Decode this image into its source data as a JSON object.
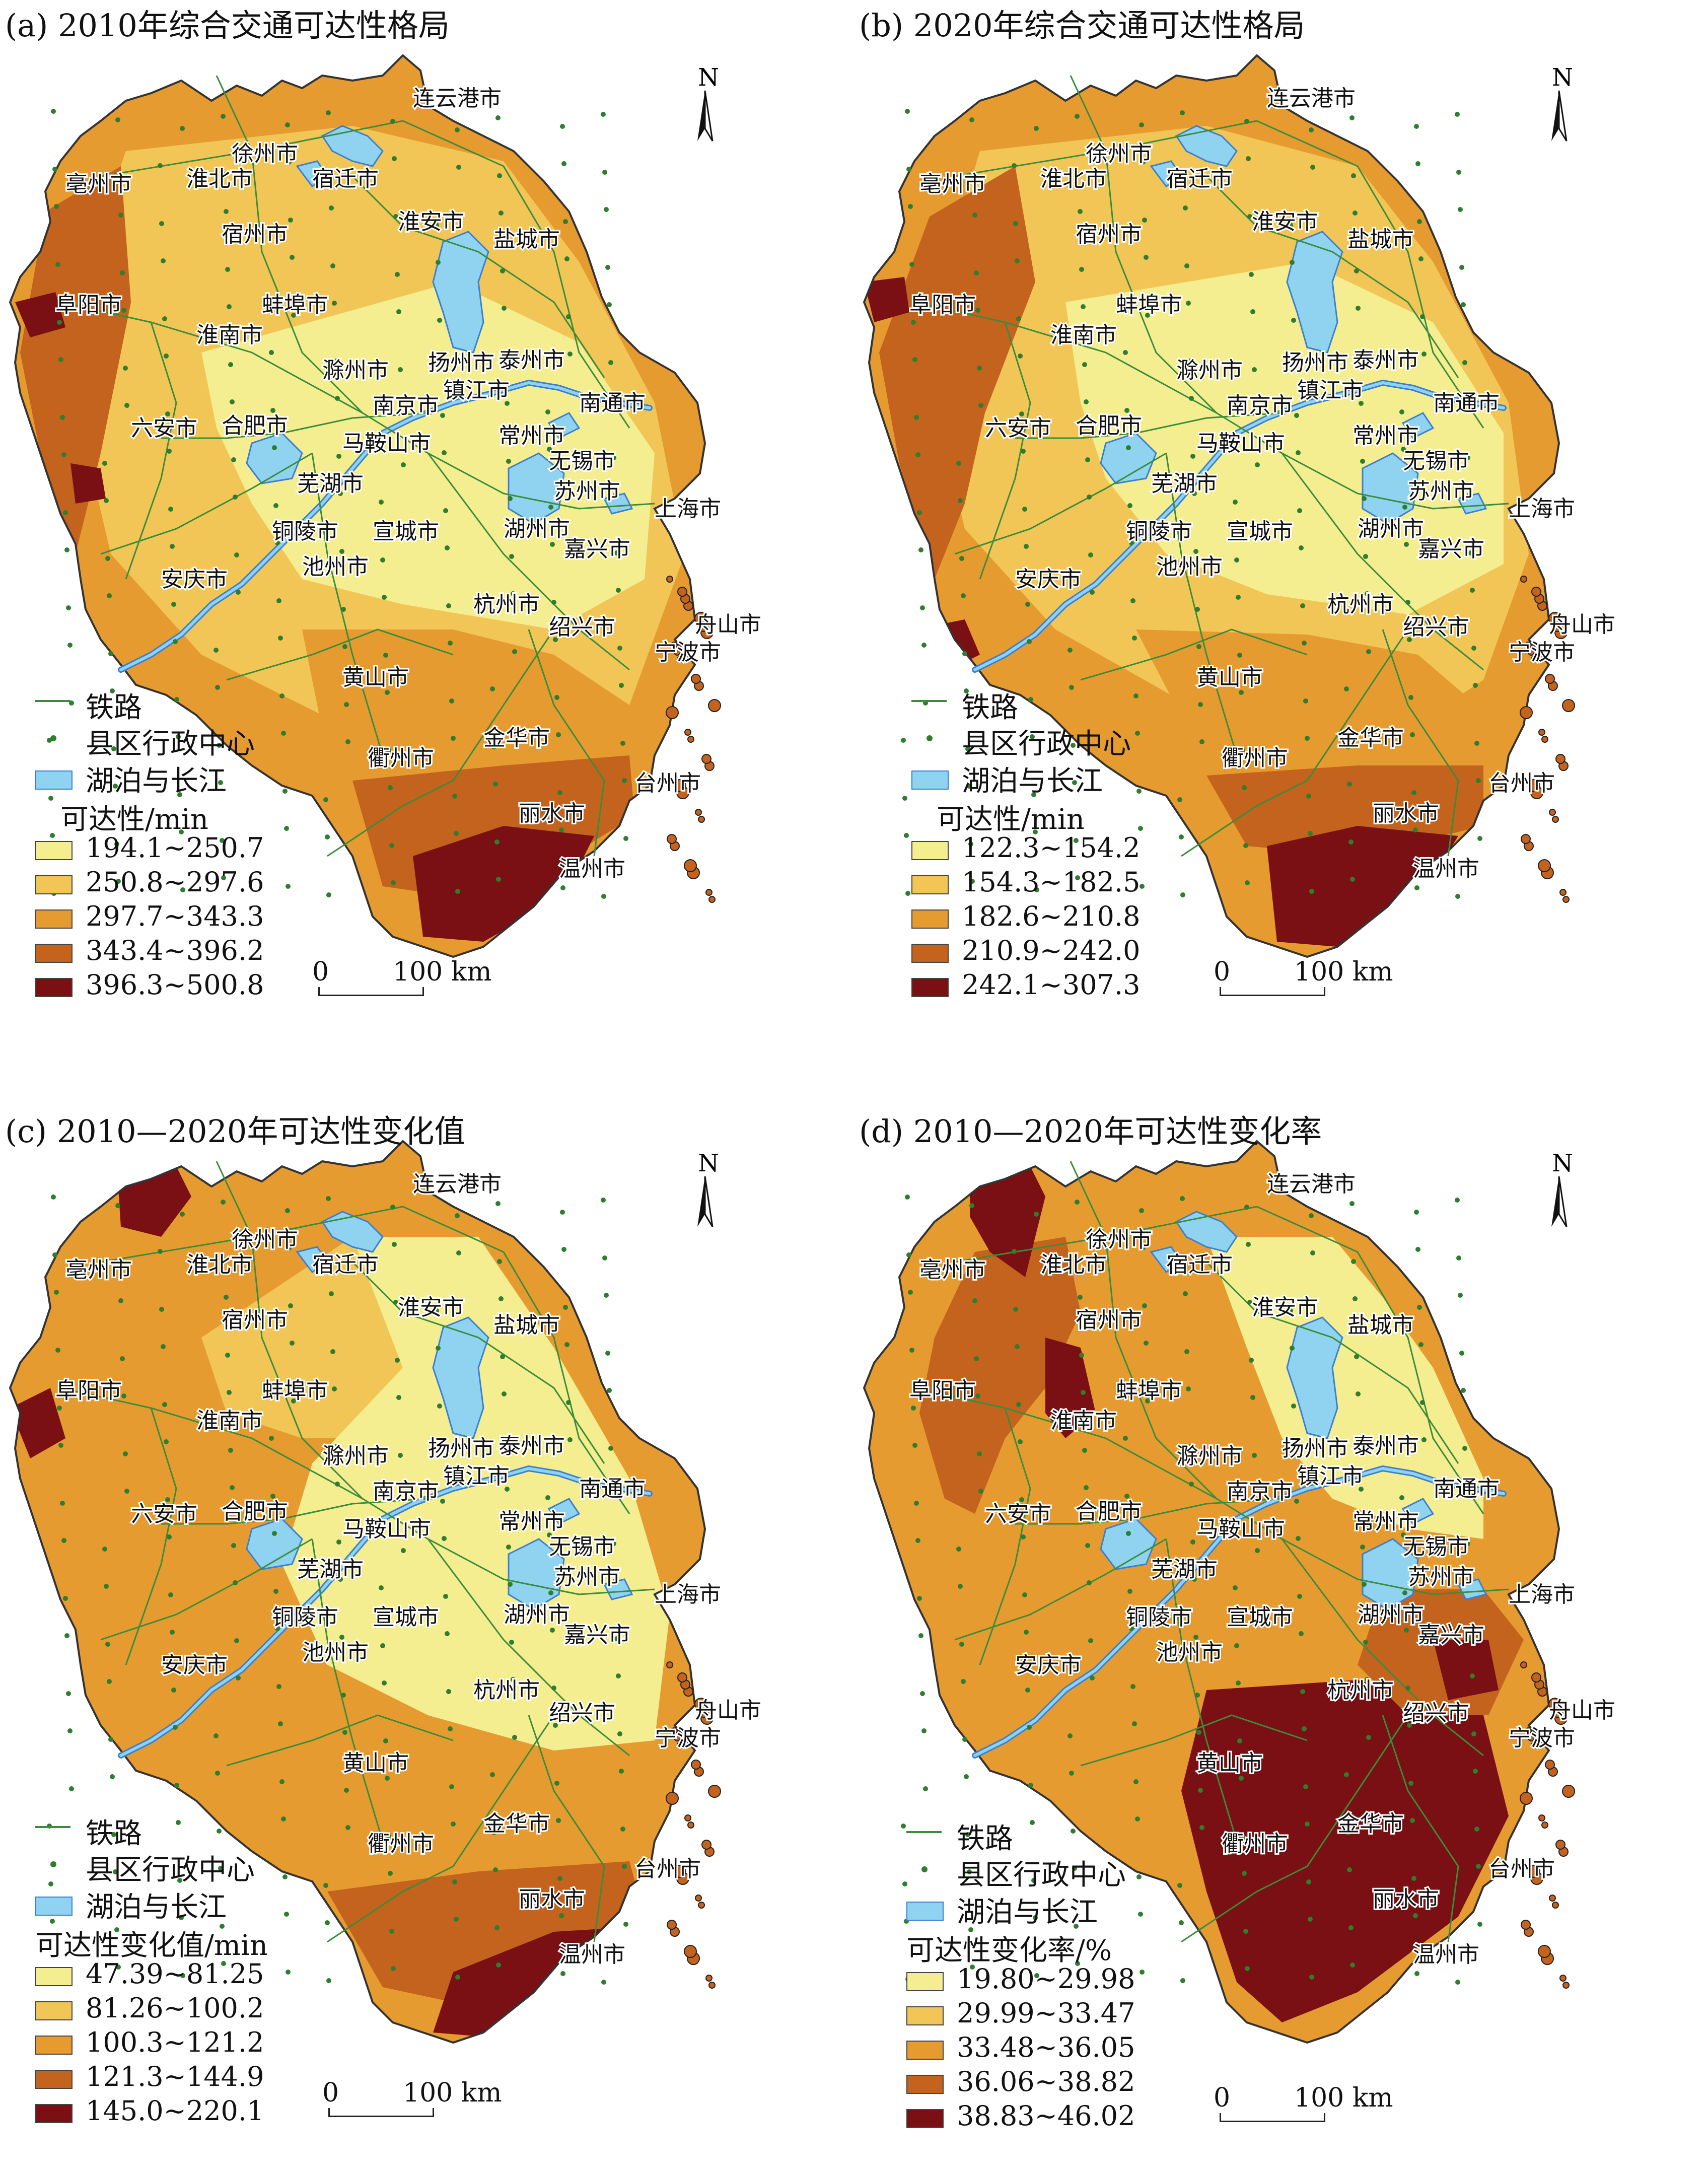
{
  "colors": {
    "class1": "#f4ee90",
    "class2": "#f1c657",
    "class3": "#e69b30",
    "class4": "#c3631e",
    "class5": "#7a0f14",
    "water": "#8fd3f0",
    "water_edge": "#3b7fd0",
    "rail": "#3b8c3b",
    "boundary": "#333333"
  },
  "legend_common": {
    "rail": "铁路",
    "county_center": "县区行政中心",
    "water": "湖泊与长江",
    "north": "N",
    "scale_zero": "0",
    "scale_text": "100 km"
  },
  "cities": [
    "连云港市",
    "徐州市",
    "亳州市",
    "淮北市",
    "宿迁市",
    "宿州市",
    "淮安市",
    "盐城市",
    "阜阳市",
    "蚌埠市",
    "淮南市",
    "滁州市",
    "扬州市",
    "泰州市",
    "镇江市",
    "南京市",
    "南通市",
    "六安市",
    "合肥市",
    "马鞍山市",
    "常州市",
    "无锡市",
    "芜湖市",
    "苏州市",
    "上海市",
    "铜陵市",
    "宣城市",
    "湖州市",
    "嘉兴市",
    "池州市",
    "安庆市",
    "杭州市",
    "绍兴市",
    "舟山市",
    "宁波市",
    "黄山市",
    "金华市",
    "衢州市",
    "台州市",
    "丽水市",
    "温州市"
  ],
  "panels": [
    {
      "title": "(a) 2010年综合交通可达性格局",
      "legend_title": "可达性/min",
      "classes": [
        "194.1~250.7",
        "250.8~297.6",
        "297.7~343.3",
        "343.4~396.2",
        "396.3~500.8"
      ]
    },
    {
      "title": "(b) 2020年综合交通可达性格局",
      "legend_title": "可达性/min",
      "classes": [
        "122.3~154.2",
        "154.3~182.5",
        "182.6~210.8",
        "210.9~242.0",
        "242.1~307.3"
      ]
    },
    {
      "title": "(c) 2010—2020年可达性变化值",
      "legend_title": "可达性变化值/min",
      "classes": [
        "47.39~81.25",
        "81.26~100.2",
        "100.3~121.2",
        "121.3~144.9",
        "145.0~220.1"
      ]
    },
    {
      "title": "(d) 2010—2020年可达性变化率",
      "legend_title": "可达性变化率/%",
      "classes": [
        "19.80~29.98",
        "29.99~33.47",
        "33.48~36.05",
        "36.06~38.82",
        "38.83~46.02"
      ]
    }
  ]
}
